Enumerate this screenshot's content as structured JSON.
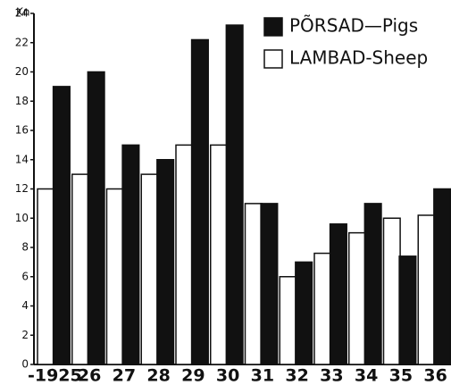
{
  "chart_data": {
    "type": "bar",
    "y_label": "Kn",
    "categories": [
      "-1925",
      "26",
      "27",
      "28",
      "29",
      "30",
      "31",
      "32",
      "33",
      "34",
      "35",
      "36"
    ],
    "series": [
      {
        "name": "LAMBAD-Sheep",
        "color": "#ffffff",
        "values": [
          12,
          13,
          12,
          13,
          15,
          15,
          11,
          6,
          7.6,
          9,
          10,
          10.2
        ]
      },
      {
        "name": "PÕRSAD—Pigs",
        "color": "#111111",
        "values": [
          19,
          20,
          15,
          14,
          22.2,
          23.2,
          11,
          7,
          9.6,
          11,
          7.4,
          12
        ]
      }
    ],
    "ylim": [
      0,
      24
    ],
    "yticks": [
      0,
      2,
      4,
      6,
      8,
      10,
      12,
      14,
      16,
      18,
      20,
      22,
      24
    ]
  }
}
